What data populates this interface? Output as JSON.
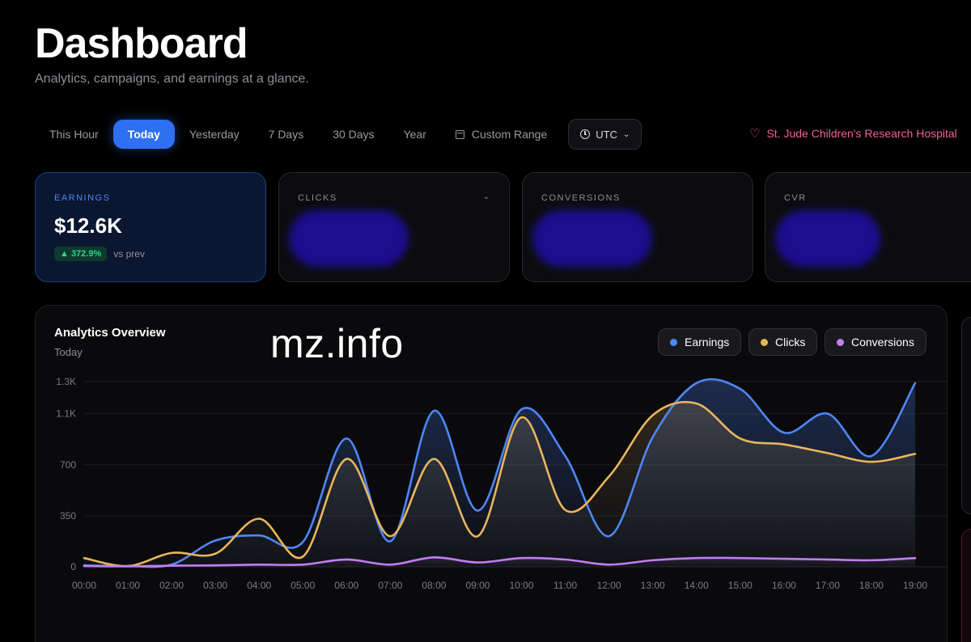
{
  "header": {
    "title": "Dashboard",
    "subtitle": "Analytics, campaigns, and earnings at a glance."
  },
  "range": {
    "options": [
      {
        "label": "This Hour",
        "active": false
      },
      {
        "label": "Today",
        "active": true
      },
      {
        "label": "Yesterday",
        "active": false
      },
      {
        "label": "7 Days",
        "active": false
      },
      {
        "label": "30 Days",
        "active": false
      },
      {
        "label": "Year",
        "active": false
      }
    ],
    "custom_label": "Custom Range",
    "timezone": "UTC"
  },
  "charity": {
    "label": "St. Jude Children's Research Hospital",
    "icon": "heart-icon"
  },
  "kpis": [
    {
      "label": "EARNINGS",
      "value": "$12.6K",
      "delta": "▲ 372.9%",
      "delta_note": "vs prev",
      "active": true
    },
    {
      "label": "CLICKS",
      "value": "",
      "redacted": true
    },
    {
      "label": "CONVERSIONS",
      "value": "",
      "redacted": true
    },
    {
      "label": "CVR",
      "value": "",
      "redacted": true
    }
  ],
  "overview": {
    "title": "Analytics Overview",
    "subtitle": "Today",
    "legend": [
      {
        "label": "Earnings",
        "color": "#4f86f7"
      },
      {
        "label": "Clicks",
        "color": "#e9b65a"
      },
      {
        "label": "Conversions",
        "color": "#c07ef0"
      }
    ]
  },
  "watermark": "mz.info",
  "chart_data": {
    "type": "area",
    "x": [
      "00:00",
      "01:00",
      "02:00",
      "03:00",
      "04:00",
      "05:00",
      "06:00",
      "07:00",
      "08:00",
      "09:00",
      "10:00",
      "11:00",
      "12:00",
      "13:00",
      "14:00",
      "15:00",
      "16:00",
      "17:00",
      "18:00",
      "19:00"
    ],
    "ytick_labels": [
      "0",
      "350",
      "700",
      "1.1K",
      "1.3K"
    ],
    "yticks": [
      0,
      350,
      700,
      1050,
      1270
    ],
    "ylim": [
      0,
      1270
    ],
    "grid": true,
    "series": [
      {
        "name": "Earnings",
        "color": "#4f86f7",
        "values": [
          10,
          5,
          15,
          180,
          215,
          170,
          880,
          175,
          1070,
          385,
          1080,
          760,
          210,
          890,
          1260,
          1220,
          920,
          1050,
          760,
          1260
        ]
      },
      {
        "name": "Clicks",
        "color": "#e9b65a",
        "values": [
          60,
          5,
          95,
          90,
          330,
          70,
          740,
          210,
          740,
          210,
          1025,
          390,
          620,
          1040,
          1120,
          880,
          840,
          780,
          720,
          775
        ]
      },
      {
        "name": "Conversions",
        "color": "#c07ef0",
        "values": [
          5,
          3,
          8,
          10,
          15,
          15,
          50,
          15,
          65,
          30,
          60,
          50,
          15,
          45,
          60,
          60,
          55,
          50,
          45,
          60
        ]
      }
    ]
  }
}
